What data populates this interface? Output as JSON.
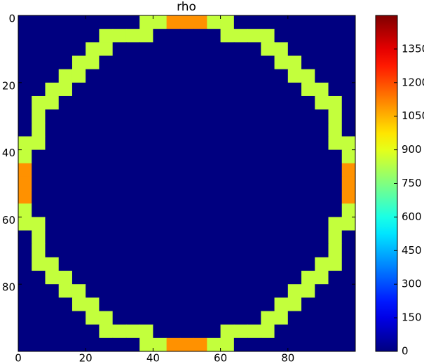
{
  "chart_data": {
    "type": "heatmap",
    "title": "rho",
    "colormap": "jet",
    "xlim": [
      0,
      100
    ],
    "ylim": [
      100,
      0
    ],
    "xticks": [
      0,
      20,
      40,
      60,
      80
    ],
    "yticks": [
      0,
      20,
      40,
      60,
      80
    ],
    "clim": [
      0,
      1500
    ],
    "cticks": [
      0,
      150,
      300,
      450,
      600,
      750,
      900,
      1050,
      1200,
      1350
    ],
    "z": [
      [
        0,
        0,
        0,
        0,
        0,
        0,
        0,
        0,
        0,
        850,
        850,
        1100,
        1100,
        1100,
        850,
        850,
        0,
        0,
        0,
        0,
        0,
        0,
        0,
        0,
        0
      ],
      [
        0,
        0,
        0,
        0,
        0,
        0,
        850,
        850,
        850,
        850,
        0,
        0,
        0,
        0,
        0,
        850,
        850,
        850,
        850,
        0,
        0,
        0,
        0,
        0,
        0
      ],
      [
        0,
        0,
        0,
        0,
        0,
        850,
        850,
        0,
        0,
        0,
        0,
        0,
        0,
        0,
        0,
        0,
        0,
        0,
        850,
        850,
        0,
        0,
        0,
        0,
        0
      ],
      [
        0,
        0,
        0,
        0,
        850,
        850,
        0,
        0,
        0,
        0,
        0,
        0,
        0,
        0,
        0,
        0,
        0,
        0,
        0,
        850,
        850,
        0,
        0,
        0,
        0
      ],
      [
        0,
        0,
        0,
        850,
        850,
        0,
        0,
        0,
        0,
        0,
        0,
        0,
        0,
        0,
        0,
        0,
        0,
        0,
        0,
        0,
        850,
        850,
        0,
        0,
        0
      ],
      [
        0,
        0,
        850,
        850,
        0,
        0,
        0,
        0,
        0,
        0,
        0,
        0,
        0,
        0,
        0,
        0,
        0,
        0,
        0,
        0,
        0,
        850,
        850,
        0,
        0
      ],
      [
        0,
        850,
        850,
        0,
        0,
        0,
        0,
        0,
        0,
        0,
        0,
        0,
        0,
        0,
        0,
        0,
        0,
        0,
        0,
        0,
        0,
        0,
        850,
        850,
        0
      ],
      [
        0,
        850,
        0,
        0,
        0,
        0,
        0,
        0,
        0,
        0,
        0,
        0,
        0,
        0,
        0,
        0,
        0,
        0,
        0,
        0,
        0,
        0,
        0,
        850,
        0
      ],
      [
        0,
        850,
        0,
        0,
        0,
        0,
        0,
        0,
        0,
        0,
        0,
        0,
        0,
        0,
        0,
        0,
        0,
        0,
        0,
        0,
        0,
        0,
        0,
        850,
        0
      ],
      [
        850,
        850,
        0,
        0,
        0,
        0,
        0,
        0,
        0,
        0,
        0,
        0,
        0,
        0,
        0,
        0,
        0,
        0,
        0,
        0,
        0,
        0,
        0,
        850,
        850
      ],
      [
        850,
        0,
        0,
        0,
        0,
        0,
        0,
        0,
        0,
        0,
        0,
        0,
        0,
        0,
        0,
        0,
        0,
        0,
        0,
        0,
        0,
        0,
        0,
        0,
        850
      ],
      [
        1100,
        0,
        0,
        0,
        0,
        0,
        0,
        0,
        0,
        0,
        0,
        0,
        0,
        0,
        0,
        0,
        0,
        0,
        0,
        0,
        0,
        0,
        0,
        0,
        1100
      ],
      [
        1100,
        0,
        0,
        0,
        0,
        0,
        0,
        0,
        0,
        0,
        0,
        0,
        0,
        0,
        0,
        0,
        0,
        0,
        0,
        0,
        0,
        0,
        0,
        0,
        1100
      ],
      [
        1100,
        0,
        0,
        0,
        0,
        0,
        0,
        0,
        0,
        0,
        0,
        0,
        0,
        0,
        0,
        0,
        0,
        0,
        0,
        0,
        0,
        0,
        0,
        0,
        1100
      ],
      [
        850,
        0,
        0,
        0,
        0,
        0,
        0,
        0,
        0,
        0,
        0,
        0,
        0,
        0,
        0,
        0,
        0,
        0,
        0,
        0,
        0,
        0,
        0,
        0,
        850
      ],
      [
        850,
        850,
        0,
        0,
        0,
        0,
        0,
        0,
        0,
        0,
        0,
        0,
        0,
        0,
        0,
        0,
        0,
        0,
        0,
        0,
        0,
        0,
        0,
        850,
        850
      ],
      [
        0,
        850,
        0,
        0,
        0,
        0,
        0,
        0,
        0,
        0,
        0,
        0,
        0,
        0,
        0,
        0,
        0,
        0,
        0,
        0,
        0,
        0,
        0,
        850,
        0
      ],
      [
        0,
        850,
        0,
        0,
        0,
        0,
        0,
        0,
        0,
        0,
        0,
        0,
        0,
        0,
        0,
        0,
        0,
        0,
        0,
        0,
        0,
        0,
        0,
        850,
        0
      ],
      [
        0,
        850,
        850,
        0,
        0,
        0,
        0,
        0,
        0,
        0,
        0,
        0,
        0,
        0,
        0,
        0,
        0,
        0,
        0,
        0,
        0,
        0,
        850,
        850,
        0
      ],
      [
        0,
        0,
        850,
        850,
        0,
        0,
        0,
        0,
        0,
        0,
        0,
        0,
        0,
        0,
        0,
        0,
        0,
        0,
        0,
        0,
        0,
        850,
        850,
        0,
        0
      ],
      [
        0,
        0,
        0,
        850,
        850,
        0,
        0,
        0,
        0,
        0,
        0,
        0,
        0,
        0,
        0,
        0,
        0,
        0,
        0,
        0,
        850,
        850,
        0,
        0,
        0
      ],
      [
        0,
        0,
        0,
        0,
        850,
        850,
        0,
        0,
        0,
        0,
        0,
        0,
        0,
        0,
        0,
        0,
        0,
        0,
        0,
        850,
        850,
        0,
        0,
        0,
        0
      ],
      [
        0,
        0,
        0,
        0,
        0,
        850,
        850,
        0,
        0,
        0,
        0,
        0,
        0,
        0,
        0,
        0,
        0,
        0,
        850,
        850,
        0,
        0,
        0,
        0,
        0
      ],
      [
        0,
        0,
        0,
        0,
        0,
        0,
        850,
        850,
        850,
        850,
        0,
        0,
        0,
        0,
        0,
        850,
        850,
        850,
        850,
        0,
        0,
        0,
        0,
        0,
        0
      ],
      [
        0,
        0,
        0,
        0,
        0,
        0,
        0,
        0,
        0,
        850,
        850,
        1100,
        1100,
        1100,
        850,
        850,
        0,
        0,
        0,
        0,
        0,
        0,
        0,
        0,
        0
      ]
    ]
  }
}
